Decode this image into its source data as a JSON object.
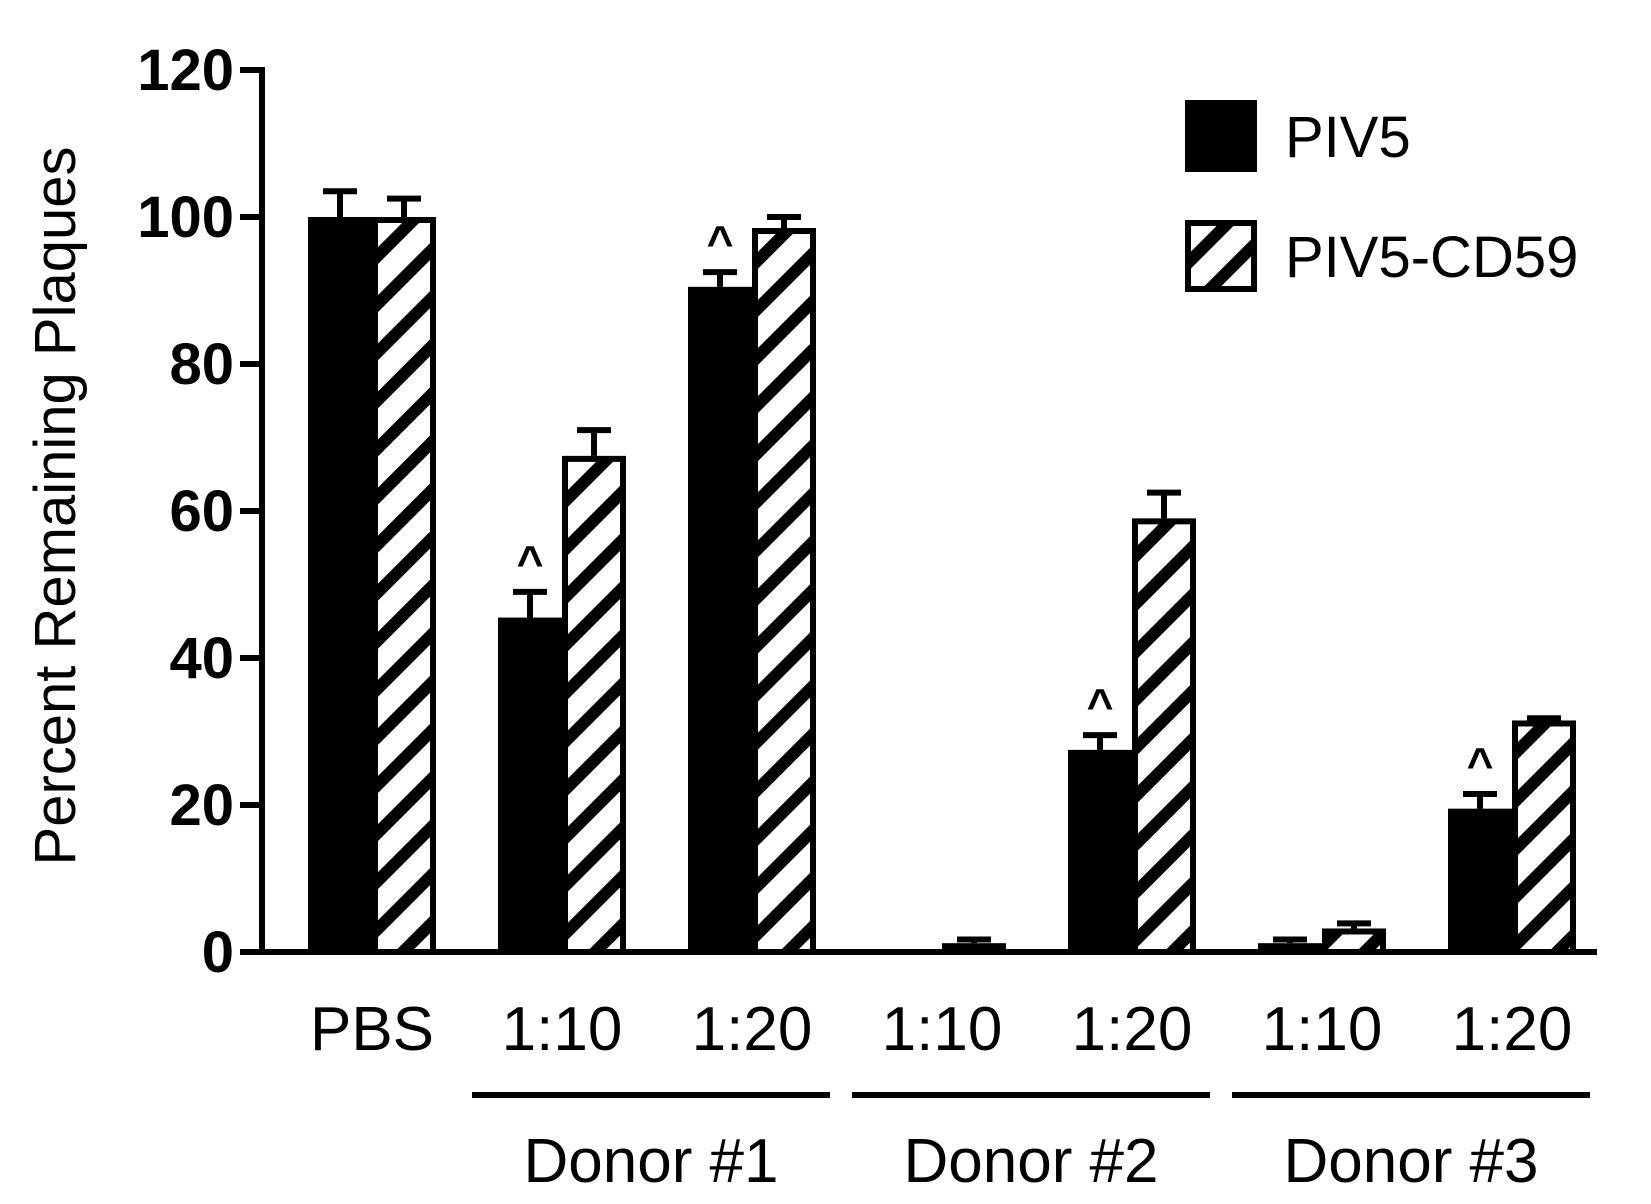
{
  "chart_data": {
    "type": "bar",
    "title": "",
    "xlabel": "",
    "ylabel": "Percent Remaining Plaques",
    "ylim": [
      0,
      120
    ],
    "yticks": [
      0,
      20,
      40,
      60,
      80,
      100,
      120
    ],
    "grid": false,
    "legend_position": "top-right",
    "categories": [
      "PBS",
      "1:10",
      "1:20",
      "1:10",
      "1:20",
      "1:10",
      "1:20"
    ],
    "groups": [
      {
        "label": "Donor #1",
        "categories": [
          1,
          2
        ]
      },
      {
        "label": "Donor #2",
        "categories": [
          3,
          4
        ]
      },
      {
        "label": "Donor #3",
        "categories": [
          5,
          6
        ]
      }
    ],
    "series": [
      {
        "name": "PIV5",
        "fill": "solid",
        "color": "#000000",
        "values": [
          100,
          45.5,
          90.5,
          0,
          27.5,
          1.2,
          19.5
        ],
        "errors": [
          3.5,
          3.5,
          2.0,
          0,
          2.0,
          0.5,
          2.0
        ],
        "significance": [
          "",
          "^",
          "^",
          "",
          "^",
          "",
          "^"
        ]
      },
      {
        "name": "PIV5-CD59",
        "fill": "hatched",
        "color": "#000000",
        "values": [
          100,
          67.5,
          98.5,
          1.2,
          59,
          3.2,
          31.5
        ],
        "errors": [
          2.5,
          3.5,
          1.5,
          0.5,
          3.5,
          0.7,
          0.3
        ],
        "significance": [
          "",
          "",
          "",
          "",
          "",
          "",
          ""
        ]
      }
    ]
  }
}
